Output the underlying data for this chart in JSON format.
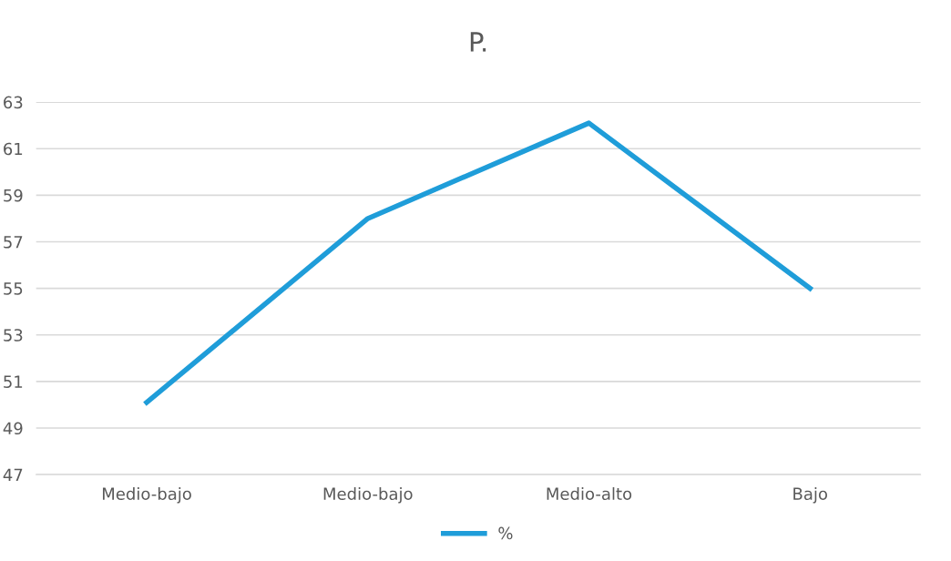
{
  "chart_data": {
    "type": "line",
    "title": "P.",
    "categories": [
      "Medio-bajo",
      "Medio-bajo",
      "Medio-alto",
      "Bajo"
    ],
    "series": [
      {
        "name": "%",
        "color": "#1f9dd9",
        "values": [
          50.1,
          58.0,
          62.1,
          55.0
        ]
      }
    ],
    "ylim": [
      47,
      63
    ],
    "yticks": [
      47,
      49,
      51,
      53,
      55,
      57,
      59,
      61,
      63
    ],
    "grid": "y",
    "legend": "bottom",
    "marker": "none",
    "line_style": "solid"
  }
}
